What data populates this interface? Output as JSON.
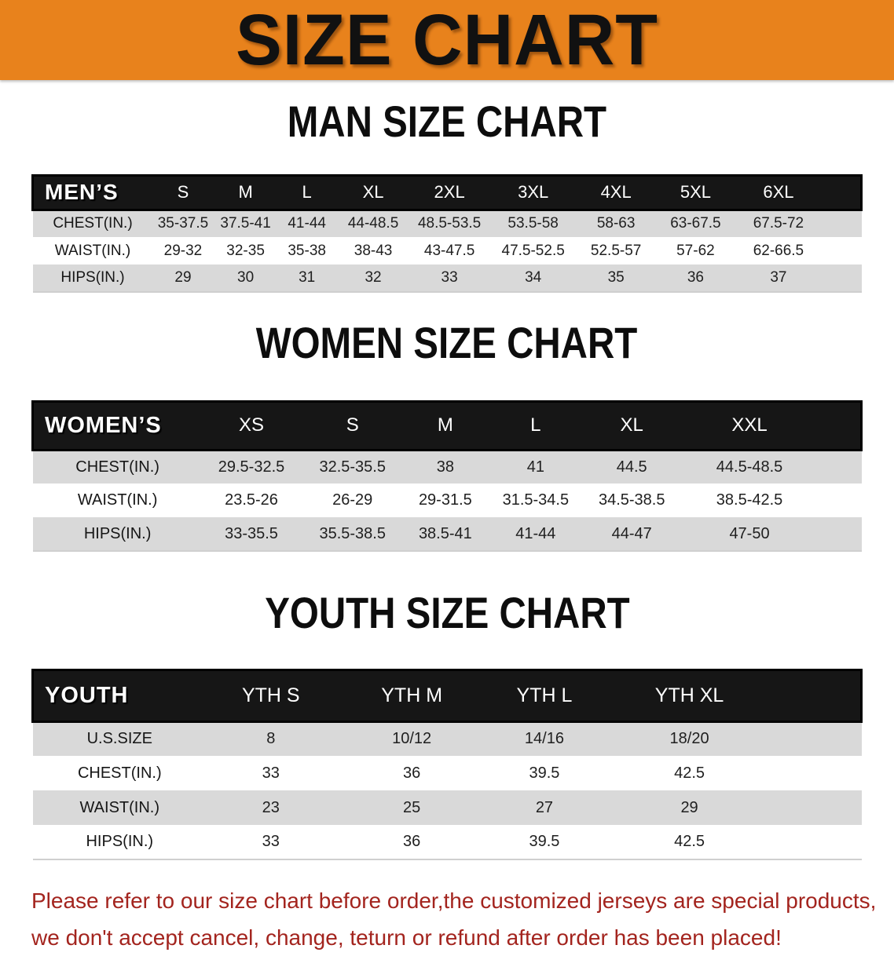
{
  "banner": {
    "title": "SIZE CHART"
  },
  "sections": {
    "men": {
      "title": "MAN SIZE CHART"
    },
    "women": {
      "title": "WOMEN SIZE CHART"
    },
    "youth": {
      "title": "YOUTH SIZE CHART"
    }
  },
  "tables": {
    "men": {
      "corner": "MEN’S",
      "sizes": [
        "S",
        "M",
        "L",
        "XL",
        "2XL",
        "3XL",
        "4XL",
        "5XL",
        "6XL"
      ],
      "col_widths": [
        "14.5%",
        "7.3%",
        "7.8%",
        "7%",
        "9%",
        "9.4%",
        "10.8%",
        "9.2%",
        "10%",
        "10%",
        "5%"
      ],
      "rows": [
        {
          "label": "CHEST(IN.)",
          "values": [
            "35-37.5",
            "37.5-41",
            "41-44",
            "44-48.5",
            "48.5-53.5",
            "53.5-58",
            "58-63",
            "63-67.5",
            "67.5-72"
          ]
        },
        {
          "label": "WAIST(IN.)",
          "values": [
            "29-32",
            "32-35",
            "35-38",
            "38-43",
            "43-47.5",
            "47.5-52.5",
            "52.5-57",
            "57-62",
            "62-66.5"
          ]
        },
        {
          "label": "HIPS(IN.)",
          "values": [
            "29",
            "30",
            "31",
            "32",
            "33",
            "34",
            "35",
            "36",
            "37"
          ]
        }
      ]
    },
    "women": {
      "corner": "WOMEN’S",
      "sizes": [
        "XS",
        "S",
        "M",
        "L",
        "XL",
        "XXL"
      ],
      "col_widths": [
        "20.5%",
        "11.8%",
        "12.6%",
        "9.8%",
        "12%",
        "11.2%",
        "17.2%",
        "4.9%"
      ],
      "rows": [
        {
          "label": "CHEST(IN.)",
          "values": [
            "29.5-32.5",
            "32.5-35.5",
            "38",
            "41",
            "44.5",
            "44.5-48.5"
          ]
        },
        {
          "label": "WAIST(IN.)",
          "values": [
            "23.5-26",
            "26-29",
            "29-31.5",
            "31.5-34.5",
            "34.5-38.5",
            "38.5-42.5"
          ]
        },
        {
          "label": "HIPS(IN.)",
          "values": [
            "33-35.5",
            "35.5-38.5",
            "38.5-41",
            "41-44",
            "44-47",
            "47-50"
          ]
        }
      ]
    },
    "youth": {
      "corner": "YOUTH",
      "sizes": [
        "YTH S",
        "YTH M",
        "YTH L",
        "YTH XL"
      ],
      "col_widths": [
        "21%",
        "15.5%",
        "18.5%",
        "13.5%",
        "21.5%",
        "10%"
      ],
      "rows": [
        {
          "label": "U.S.SIZE",
          "values": [
            "8",
            "10/12",
            "14/16",
            "18/20"
          ]
        },
        {
          "label": "CHEST(IN.)",
          "values": [
            "33",
            "36",
            "39.5",
            "42.5"
          ]
        },
        {
          "label": "WAIST(IN.)",
          "values": [
            "23",
            "25",
            "27",
            "29"
          ]
        },
        {
          "label": "HIPS(IN.)",
          "values": [
            "33",
            "36",
            "39.5",
            "42.5"
          ]
        }
      ]
    }
  },
  "disclaimer": {
    "line1": "Please refer to our size chart before order,the customized jerseys are special products,",
    "line2": "we don't accept cancel, change, teturn or refund after order has been placed!"
  },
  "colors": {
    "banner_orange": "#E8821C",
    "header_black": "#161616",
    "row_gray": "#D9D9D9",
    "disclaimer_red": "#A3241E"
  }
}
